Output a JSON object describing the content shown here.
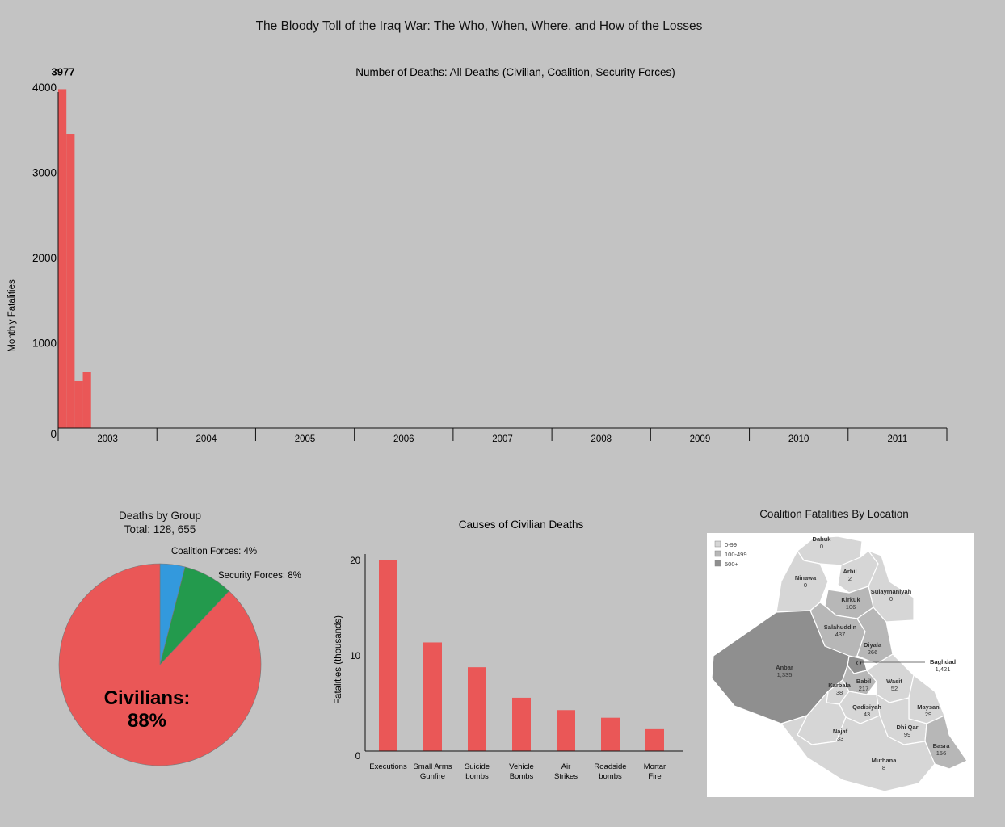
{
  "page": {
    "title": "The Bloody Toll of the Iraq War: The Who, When, Where, and How of the Losses"
  },
  "colors": {
    "background": "#c3c3c3",
    "bar": "#ea5757",
    "civilians": "#ea5757",
    "coalition": "#3399dd",
    "security": "#239a4d",
    "map_light": "#d6d6d6",
    "map_mid": "#b7b7b7",
    "map_dark": "#8f8f8f"
  },
  "chart_data": [
    {
      "type": "bar",
      "title": "Number of Deaths: All Deaths (Civilian, Coalition, Security Forces)",
      "ylabel": "Monthly Fatalities",
      "xlabel": "",
      "ylim": [
        0,
        4000
      ],
      "yticks": [
        "0",
        "1000",
        "2000",
        "3000",
        "4000"
      ],
      "xticks": [
        "2003",
        "2004",
        "2005",
        "2006",
        "2007",
        "2008",
        "2009",
        "2010",
        "2011"
      ],
      "x": [
        "2003-03",
        "2003-04",
        "2003-05",
        "2003-06"
      ],
      "values": [
        3977,
        3450,
        550,
        660
      ],
      "peak_label": "3977",
      "grid": false
    },
    {
      "type": "pie",
      "title": "Deaths by Group",
      "subtitle": "Total: 128, 655",
      "labels": [
        "Civilians: 88%",
        "Coalition Forces: 4%",
        "Security Forces: 8%"
      ],
      "values": [
        88,
        4,
        8
      ]
    },
    {
      "type": "bar",
      "title": "Causes of Civilian Deaths",
      "ylabel": "Fatalities (thousands)",
      "xlabel": "",
      "ylim": [
        0,
        20
      ],
      "yticks": [
        "0",
        "10",
        "20"
      ],
      "categories": [
        "Executions",
        "Small Arms Gunfire",
        "Suicide bombs",
        "Vehicle Bombs",
        "Air Strikes",
        "Roadside bombs",
        "Mortar Fire"
      ],
      "category_lines": [
        [
          "Executions"
        ],
        [
          "Small Arms",
          "Gunfire"
        ],
        [
          "Suicide",
          "bombs"
        ],
        [
          "Vehicle",
          "Bombs"
        ],
        [
          "Air",
          "Strikes"
        ],
        [
          "Roadside",
          "bombs"
        ],
        [
          "Mortar",
          "Fire"
        ]
      ],
      "values": [
        20,
        11.4,
        8.8,
        5.6,
        4.3,
        3.5,
        2.3
      ]
    }
  ],
  "map": {
    "title": "Coalition Fatalities By Location",
    "legend": [
      "0-99",
      "100-499",
      "500+"
    ],
    "regions": [
      {
        "name": "Dahuk",
        "value": "0"
      },
      {
        "name": "Ninawa",
        "value": "0"
      },
      {
        "name": "Arbil",
        "value": "2"
      },
      {
        "name": "Sulaymaniyah",
        "value": "0"
      },
      {
        "name": "Kirkuk",
        "value": "106"
      },
      {
        "name": "Salahuddin",
        "value": "437"
      },
      {
        "name": "Diyala",
        "value": "266"
      },
      {
        "name": "Baghdad",
        "value": "1,421"
      },
      {
        "name": "Anbar",
        "value": "1,335"
      },
      {
        "name": "Karbala",
        "value": "38"
      },
      {
        "name": "Babil",
        "value": "217"
      },
      {
        "name": "Wasit",
        "value": "52"
      },
      {
        "name": "Qadisiyah",
        "value": "43"
      },
      {
        "name": "Maysan",
        "value": "29"
      },
      {
        "name": "Najaf",
        "value": "33"
      },
      {
        "name": "Dhi Qar",
        "value": "99"
      },
      {
        "name": "Basra",
        "value": "156"
      },
      {
        "name": "Muthana",
        "value": "8"
      }
    ]
  }
}
